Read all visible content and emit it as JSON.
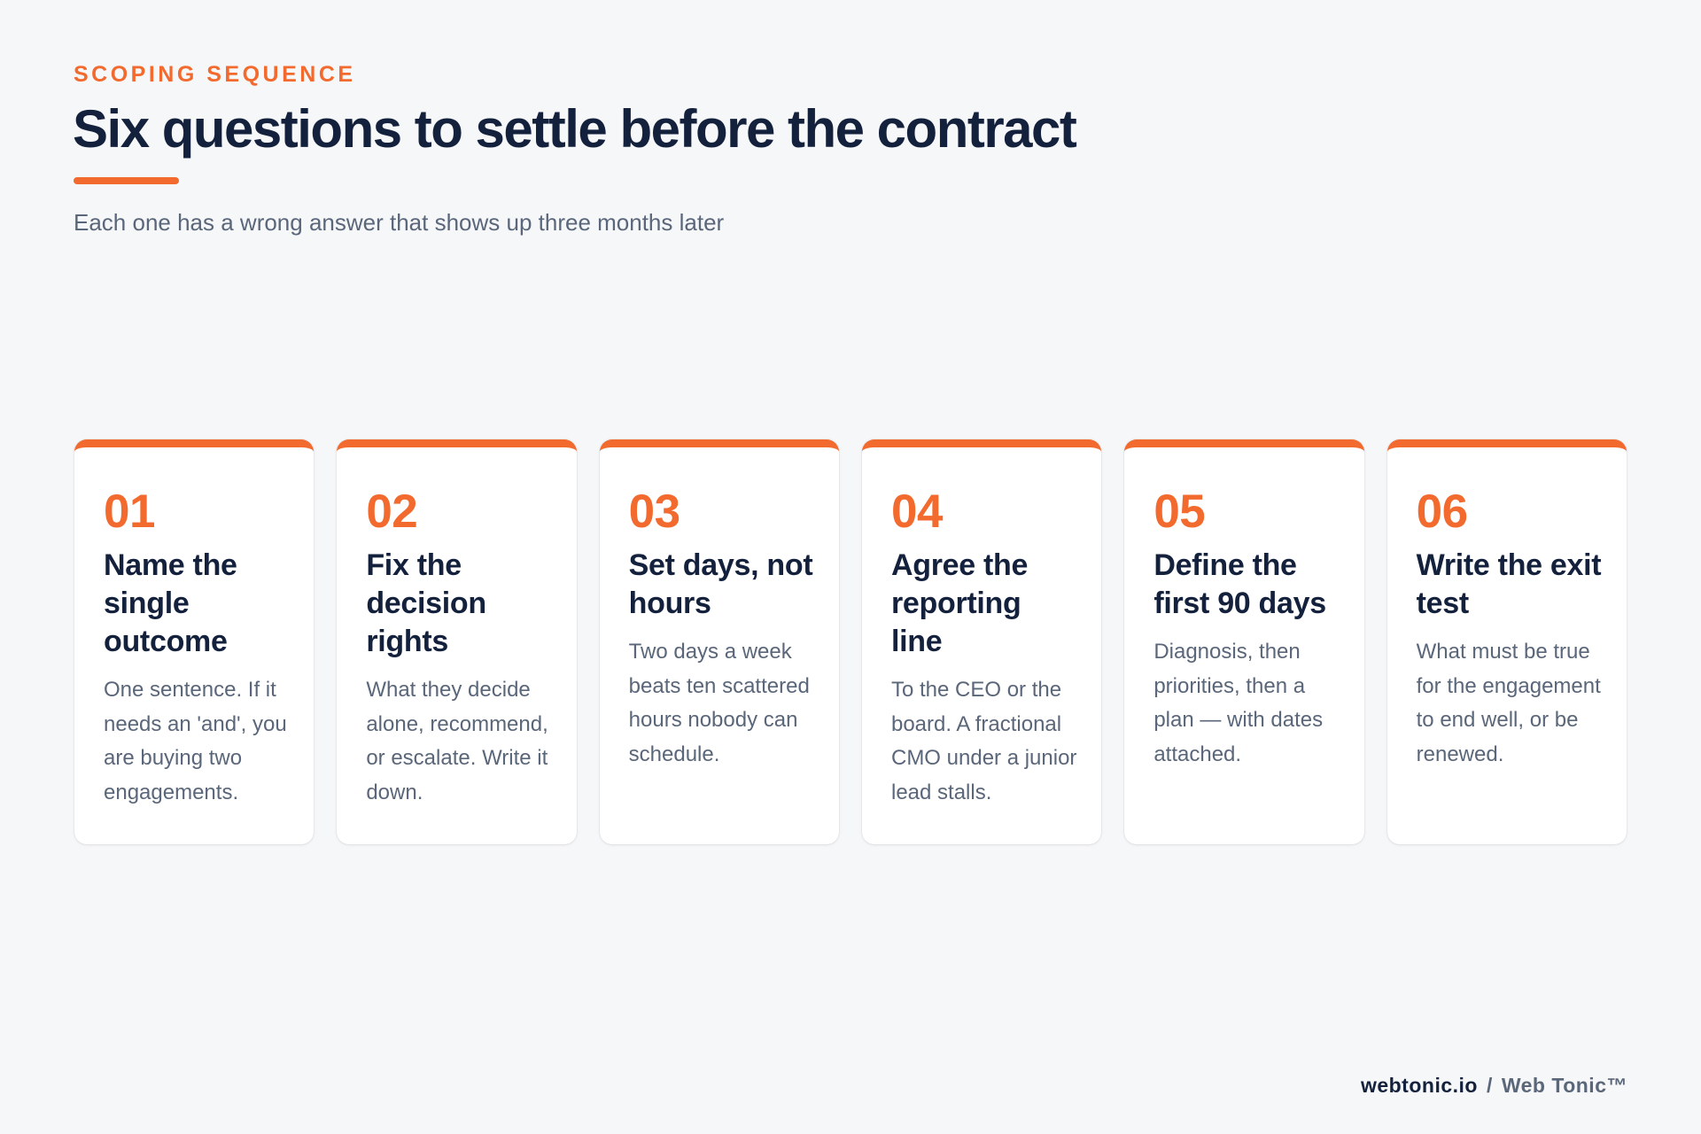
{
  "header": {
    "eyebrow": "SCOPING SEQUENCE",
    "title": "Six questions to settle before the contract",
    "subtitle": "Each one has a wrong answer that shows up three months later"
  },
  "cards": [
    {
      "number": "01",
      "title": "Name the single outcome",
      "body": "One sentence. If it needs an 'and', you are buying two engagements."
    },
    {
      "number": "02",
      "title": "Fix the decision rights",
      "body": "What they decide alone, recommend, or escalate. Write it down."
    },
    {
      "number": "03",
      "title": "Set days, not hours",
      "body": "Two days a week beats ten scattered hours nobody can schedule."
    },
    {
      "number": "04",
      "title": "Agree the reporting line",
      "body": "To the CEO or the board. A fractional CMO under a junior lead stalls."
    },
    {
      "number": "05",
      "title": "Define the first 90 days",
      "body": "Diagnosis, then priorities, then a plan — with dates attached."
    },
    {
      "number": "06",
      "title": "Write the exit test",
      "body": "What must be true for the engagement to end well, or be renewed."
    }
  ],
  "footer": {
    "domain": "webtonic.io",
    "separator": "/",
    "brand": "Web Tonic™"
  },
  "colors": {
    "accent": "#f26a2e",
    "heading": "#14213d",
    "muted": "#5a6679",
    "background": "#f6f7f9",
    "card": "#ffffff"
  }
}
